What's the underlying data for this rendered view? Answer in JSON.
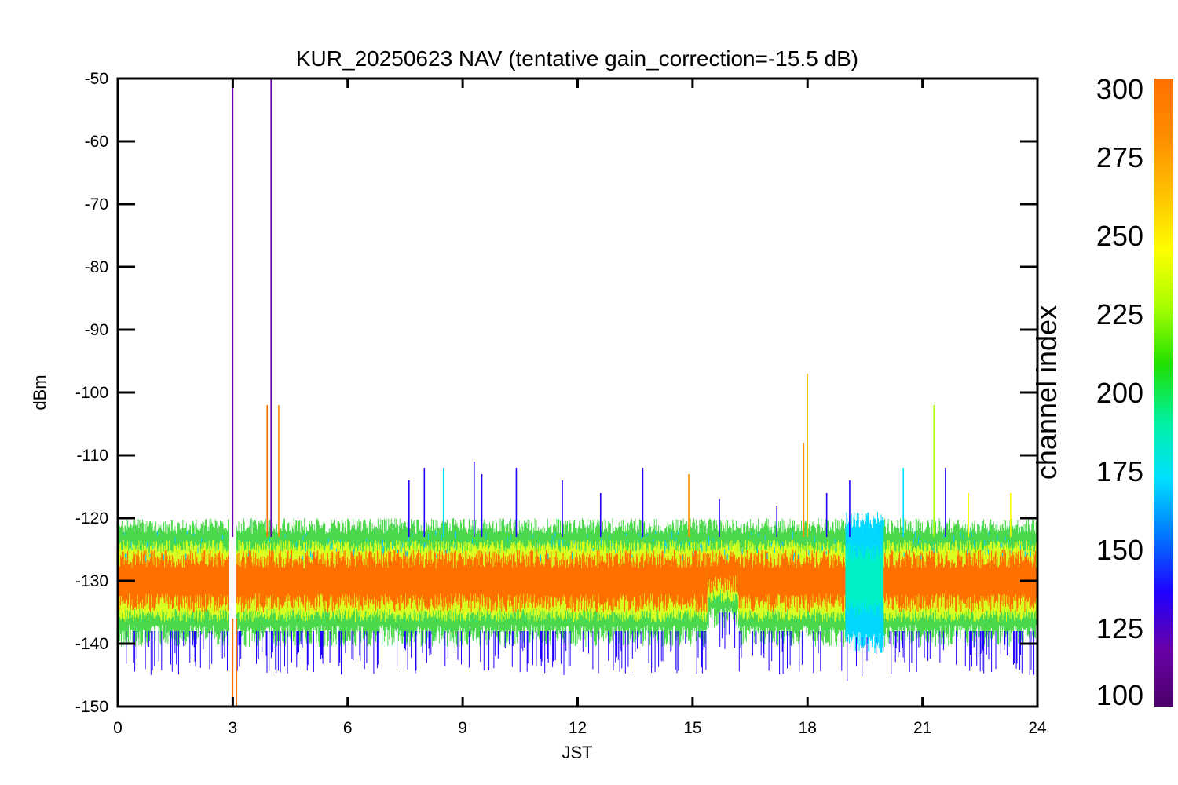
{
  "chart_data": {
    "type": "line",
    "title": "KUR_20250623 NAV (tentative gain_correction=-15.5 dB)",
    "xlabel": "JST",
    "ylabel": "dBm",
    "xlim": [
      0,
      24
    ],
    "ylim": [
      -150,
      -50
    ],
    "x_ticks": [
      0,
      3,
      6,
      9,
      12,
      15,
      18,
      21,
      24
    ],
    "y_ticks": [
      -50,
      -60,
      -70,
      -80,
      -90,
      -100,
      -110,
      -120,
      -130,
      -140,
      -150
    ],
    "grid": false,
    "colorbar": {
      "label": "channel index",
      "range": [
        100,
        300
      ],
      "ticks": [
        300,
        275,
        250,
        225,
        200,
        175,
        150,
        125,
        100
      ],
      "colormap": [
        "#4b0069",
        "#6a00a8",
        "#1f00ff",
        "#0078ff",
        "#00e0ff",
        "#00f0a0",
        "#20e000",
        "#a8ff00",
        "#ffff00",
        "#ffc000",
        "#ff8c00",
        "#ff7000"
      ]
    },
    "bands": [
      {
        "x": [
          0,
          2.9
        ],
        "channel": 295,
        "y": [
          -137,
          -122
        ]
      },
      {
        "x": [
          3.1,
          15.4
        ],
        "channel": 295,
        "y": [
          -137,
          -122
        ]
      },
      {
        "x": [
          15.4,
          16.2
        ],
        "channel": 295,
        "y": [
          -134,
          -122
        ]
      },
      {
        "x": [
          16.2,
          19.0
        ],
        "channel": 295,
        "y": [
          -137,
          -122
        ]
      },
      {
        "x": [
          19.0,
          20.0
        ],
        "channel": 182,
        "y": [
          -138,
          -121
        ]
      },
      {
        "x": [
          20.0,
          24.0
        ],
        "channel": 295,
        "y": [
          -137,
          -122
        ]
      }
    ],
    "spikes": [
      {
        "x": 3.0,
        "y": -50,
        "channel": 110
      },
      {
        "x": 3.0,
        "y": -150,
        "channel": 295
      },
      {
        "x": 3.1,
        "y": -150,
        "channel": 295
      },
      {
        "x": 4.0,
        "y": -50,
        "channel": 110
      },
      {
        "x": 3.9,
        "y": -102,
        "channel": 295
      },
      {
        "x": 4.2,
        "y": -102,
        "channel": 280
      },
      {
        "x": 7.6,
        "y": -114,
        "channel": 145
      },
      {
        "x": 8.0,
        "y": -112,
        "channel": 145
      },
      {
        "x": 8.5,
        "y": -112,
        "channel": 175
      },
      {
        "x": 9.3,
        "y": -111,
        "channel": 140
      },
      {
        "x": 9.5,
        "y": -113,
        "channel": 145
      },
      {
        "x": 10.4,
        "y": -112,
        "channel": 140
      },
      {
        "x": 11.6,
        "y": -114,
        "channel": 140
      },
      {
        "x": 12.6,
        "y": -116,
        "channel": 140
      },
      {
        "x": 13.7,
        "y": -112,
        "channel": 140
      },
      {
        "x": 14.9,
        "y": -113,
        "channel": 290
      },
      {
        "x": 15.7,
        "y": -117,
        "channel": 145
      },
      {
        "x": 17.2,
        "y": -118,
        "channel": 140
      },
      {
        "x": 17.9,
        "y": -108,
        "channel": 280
      },
      {
        "x": 18.0,
        "y": -97,
        "channel": 270
      },
      {
        "x": 18.5,
        "y": -116,
        "channel": 140
      },
      {
        "x": 19.1,
        "y": -114,
        "channel": 140
      },
      {
        "x": 20.5,
        "y": -112,
        "channel": 175
      },
      {
        "x": 21.3,
        "y": -102,
        "channel": 230
      },
      {
        "x": 21.6,
        "y": -112,
        "channel": 140
      },
      {
        "x": 22.2,
        "y": -116,
        "channel": 250
      },
      {
        "x": 23.3,
        "y": -116,
        "channel": 250
      }
    ]
  }
}
